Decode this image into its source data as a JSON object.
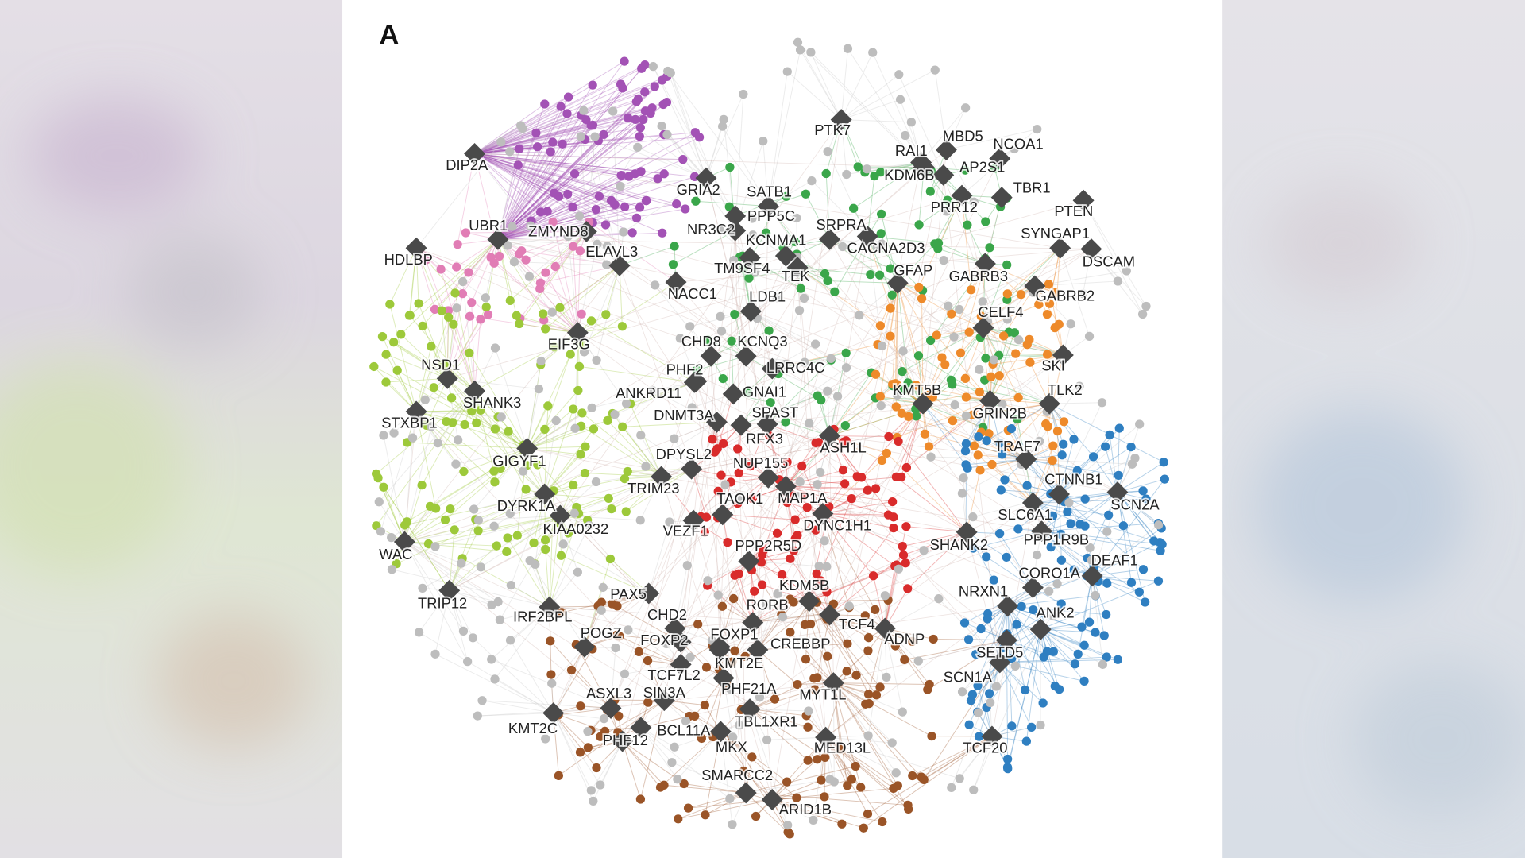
{
  "panel_label": "A",
  "nodes": [
    "DIP2A",
    "UBR1",
    "HDLBP",
    "ZMYND8",
    "ELAVL3",
    "EIF3G",
    "NSD1",
    "SHANK3",
    "STXBP1",
    "GIGYF1",
    "DYRK1A",
    "KIAA0232",
    "WAC",
    "TRIP12",
    "IRF2BPL",
    "PAX5",
    "CHD2",
    "POGZ",
    "FOXP2",
    "ASXL3",
    "KMT2C",
    "BCL11A",
    "PHF12",
    "SIN3A",
    "TCF7L2",
    "KMT2E",
    "FOXP1",
    "CREBBP",
    "PHF21A",
    "MYT1L",
    "TBL1XR1",
    "MKX",
    "MED13L",
    "SMARCC2",
    "ARID1B",
    "TCF20",
    "SCN1A",
    "SETD5",
    "ADNP",
    "TCF4",
    "KDM5B",
    "RORB",
    "NRXN1",
    "ANK2",
    "CORO1A",
    "DEAF1",
    "PPP1R9B",
    "SHANK2",
    "SLC6A1",
    "CTNNB1",
    "SCN2A",
    "TRAF7",
    "GRIN2B",
    "KMT5B",
    "SKI",
    "TLK2",
    "CELF4",
    "GABRB2",
    "GABRB3",
    "DSCAM",
    "SYNGAP1",
    "PTEN",
    "TBR1",
    "PRR12",
    "AP2S1",
    "KDM6B",
    "RAI1",
    "MBD5",
    "NCOA1",
    "PTK7",
    "GFAP",
    "CACNA2D3",
    "SRPRA",
    "SATB1",
    "GRIA2",
    "PPP5C",
    "NR3C2",
    "KCNMA1",
    "TM9SF4",
    "TEK",
    "NACC1",
    "LDB1",
    "CHD8",
    "KCNQ3",
    "PHF2",
    "LRRC4C",
    "ANKRD11",
    "GNAI1",
    "DNMT3A",
    "SPAST",
    "RFX3",
    "ASH1L",
    "DPYSL2",
    "NUP155",
    "TRIM23",
    "TAOK1",
    "MAP1A",
    "VEZF1",
    "DYNC1H1",
    "PPP2R5D"
  ]
}
